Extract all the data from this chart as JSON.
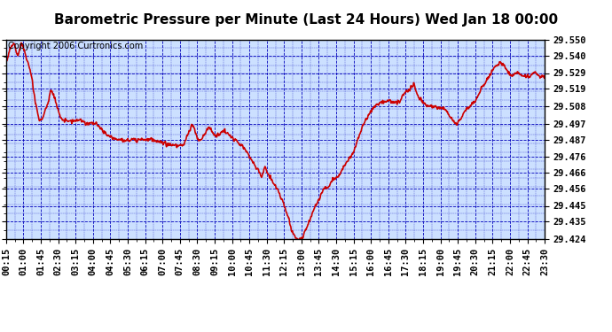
{
  "title": "Barometric Pressure per Minute (Last 24 Hours) Wed Jan 18 00:00",
  "copyright": "Copyright 2006 Curtronics.com",
  "y_ticks": [
    29.424,
    29.435,
    29.445,
    29.456,
    29.466,
    29.476,
    29.487,
    29.497,
    29.508,
    29.519,
    29.529,
    29.54,
    29.55
  ],
  "ylim": [
    29.424,
    29.55
  ],
  "x_labels": [
    "00:15",
    "01:00",
    "01:45",
    "02:30",
    "03:15",
    "04:00",
    "04:45",
    "05:30",
    "06:15",
    "07:00",
    "07:45",
    "08:30",
    "09:15",
    "10:00",
    "10:45",
    "11:30",
    "12:15",
    "13:00",
    "13:45",
    "14:30",
    "15:15",
    "16:00",
    "16:45",
    "17:30",
    "18:15",
    "19:00",
    "19:45",
    "20:30",
    "21:15",
    "22:00",
    "22:45",
    "23:30"
  ],
  "line_color": "#cc0000",
  "bg_color": "#cce0ff",
  "grid_color": "#0000bb",
  "title_fontsize": 11,
  "copyright_fontsize": 7,
  "tick_label_fontsize": 7.5,
  "line_width": 1.2
}
